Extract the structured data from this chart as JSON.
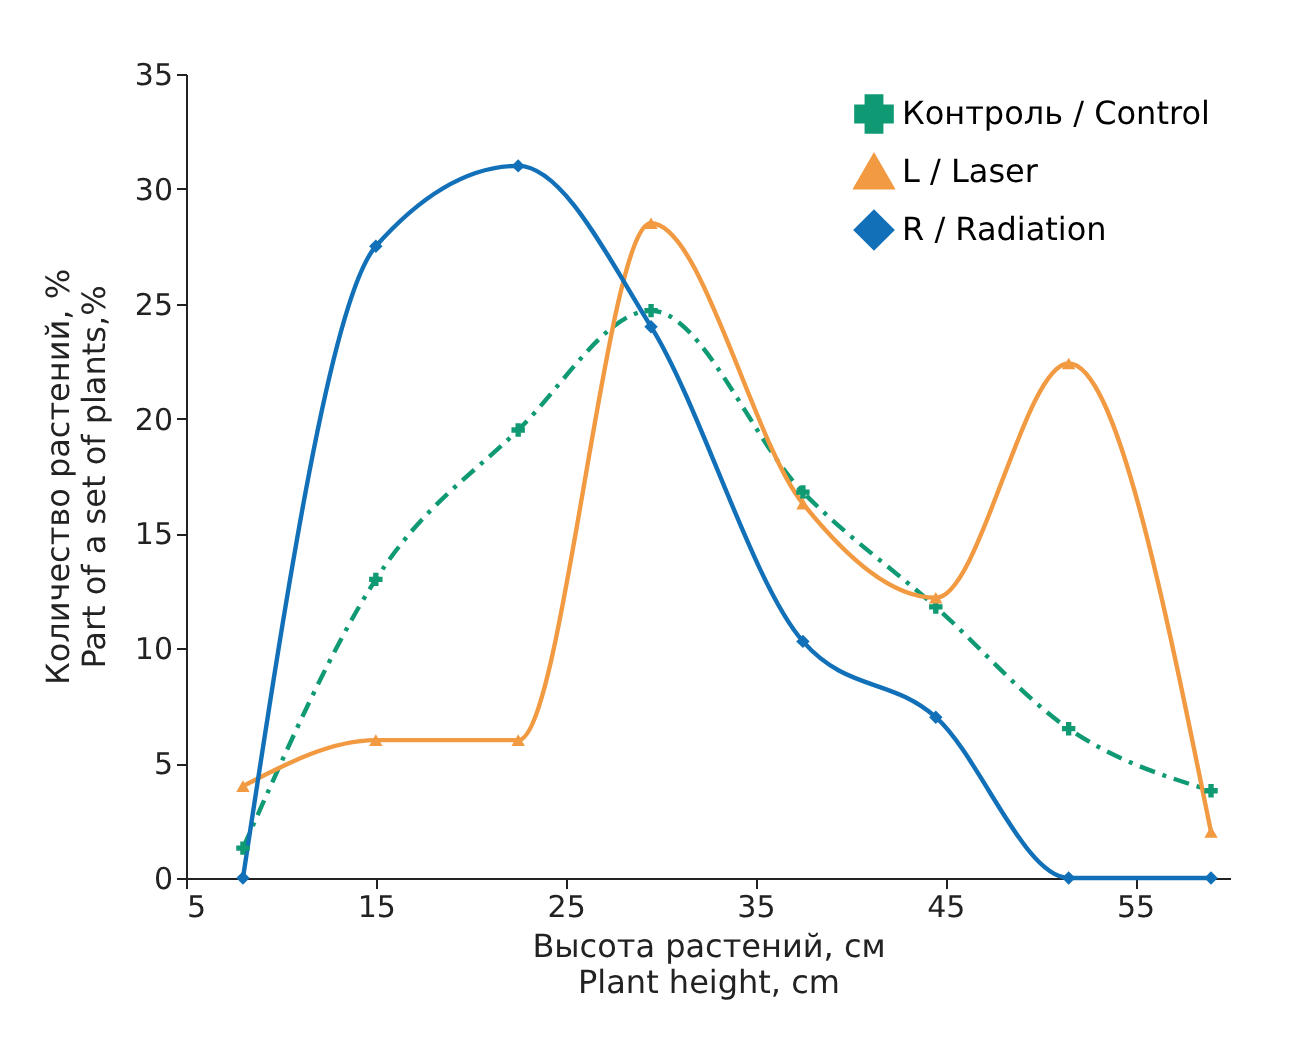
{
  "chart_data": {
    "type": "line",
    "xlabel": "Высота растений, см\nPlant height, cm",
    "ylabel": "Количество растений, %\nPart of a set of plants,%",
    "xlim": [
      5,
      60
    ],
    "xticks": [
      5,
      15,
      25,
      35,
      45,
      55
    ],
    "ylim": [
      0,
      35
    ],
    "yticks": [
      0,
      5,
      10,
      15,
      20,
      25,
      30,
      35
    ],
    "grid": false,
    "legend": "top right",
    "series": [
      {
        "name": "Контроль / Control",
        "color": "#0f9a73",
        "marker": "cross",
        "line_style": "dashed",
        "x": [
          8,
          15,
          22.5,
          29.5,
          37.5,
          44.5,
          51.5,
          59
        ],
        "values": [
          1.3,
          13,
          19.5,
          24.7,
          16.8,
          11.8,
          6.5,
          3.8
        ]
      },
      {
        "name": "L / Laser",
        "color": "#f29a42",
        "marker": "triangle",
        "line_style": "solid",
        "x": [
          8,
          15,
          22.5,
          29.5,
          37.5,
          44.5,
          51.5,
          59
        ],
        "values": [
          4,
          6,
          6,
          28.5,
          16.3,
          12.2,
          22.4,
          2
        ]
      },
      {
        "name": "R / Radiation",
        "color": "#1170b7",
        "marker": "diamond",
        "line_style": "solid",
        "x": [
          8,
          15,
          22.5,
          29.5,
          37.5,
          44.5,
          51.5,
          59
        ],
        "values": [
          0,
          27.5,
          31,
          24,
          10.3,
          7,
          0,
          0
        ]
      }
    ]
  }
}
